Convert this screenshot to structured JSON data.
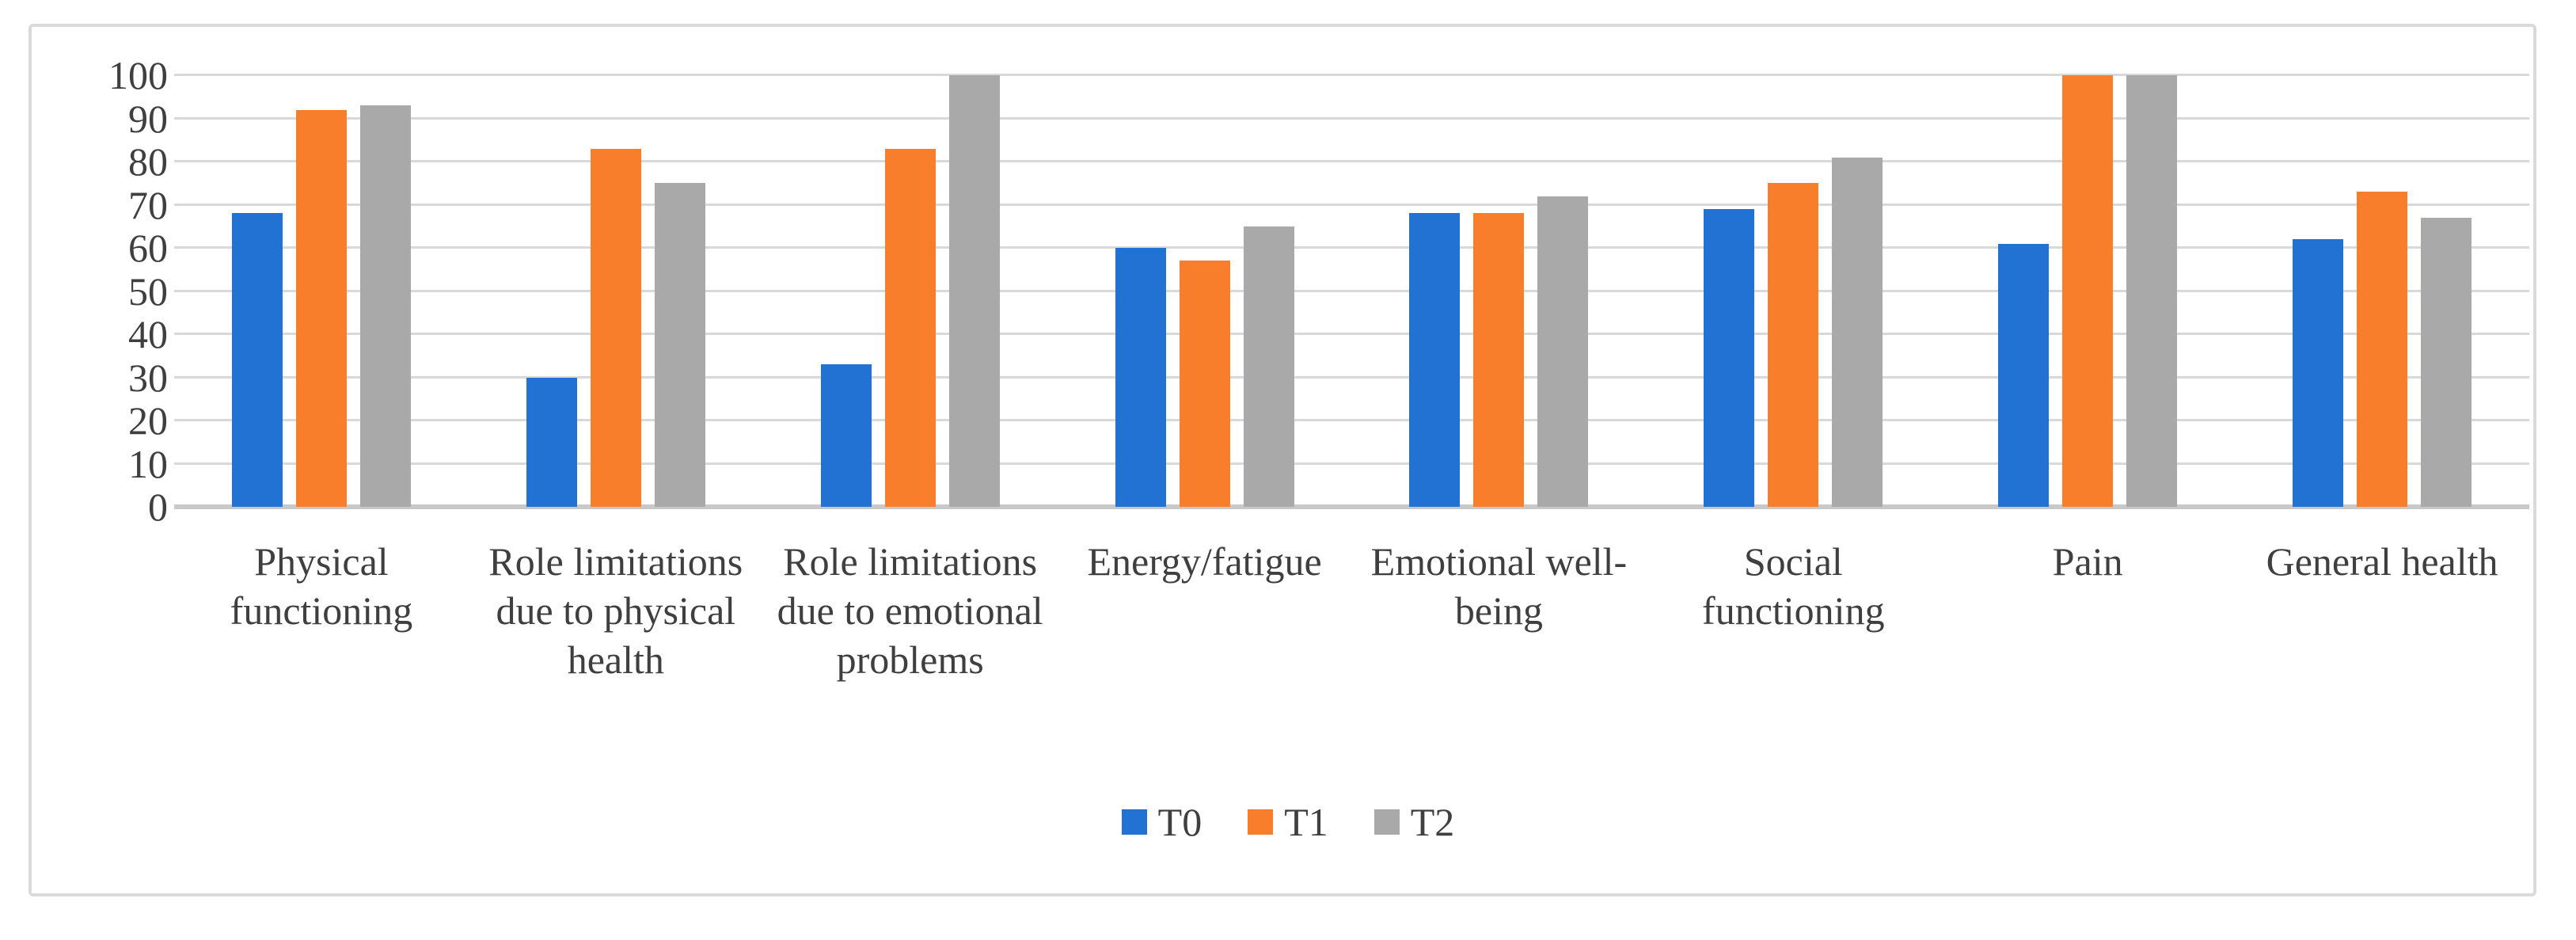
{
  "figure": {
    "background": "#FFFFFF",
    "frame_border_color": "#DADADA"
  },
  "chart_data": {
    "type": "bar",
    "title": "",
    "xlabel": "",
    "ylabel": "",
    "categories": [
      "Physical functioning",
      "Role limitations due to physical health",
      "Role limitations due to emotional problems",
      "Energy/fatigue",
      "Emotional well-being",
      "Social functioning",
      "Pain",
      "General health"
    ],
    "series": [
      {
        "name": "T0",
        "color": "#2272D4",
        "values": [
          68,
          30,
          33,
          60,
          68,
          69,
          61,
          62
        ]
      },
      {
        "name": "T1",
        "color": "#F87E2B",
        "values": [
          92,
          83,
          83,
          57,
          68,
          75,
          100,
          73
        ]
      },
      {
        "name": "T2",
        "color": "#A9A9A9",
        "values": [
          93,
          75,
          100,
          65,
          72,
          81,
          100,
          67
        ]
      }
    ],
    "ylim": [
      0,
      100
    ],
    "y_tick_step": 10,
    "y_tick_labels": [
      "0",
      "10",
      "20",
      "30",
      "40",
      "50",
      "60",
      "70",
      "80",
      "90",
      "100"
    ],
    "grid": true,
    "legend_position": "bottom",
    "axis_text_color": "#3F3F3F",
    "gridline_color": "#D9D9D9",
    "axis_line_color": "#C9C9C9"
  }
}
